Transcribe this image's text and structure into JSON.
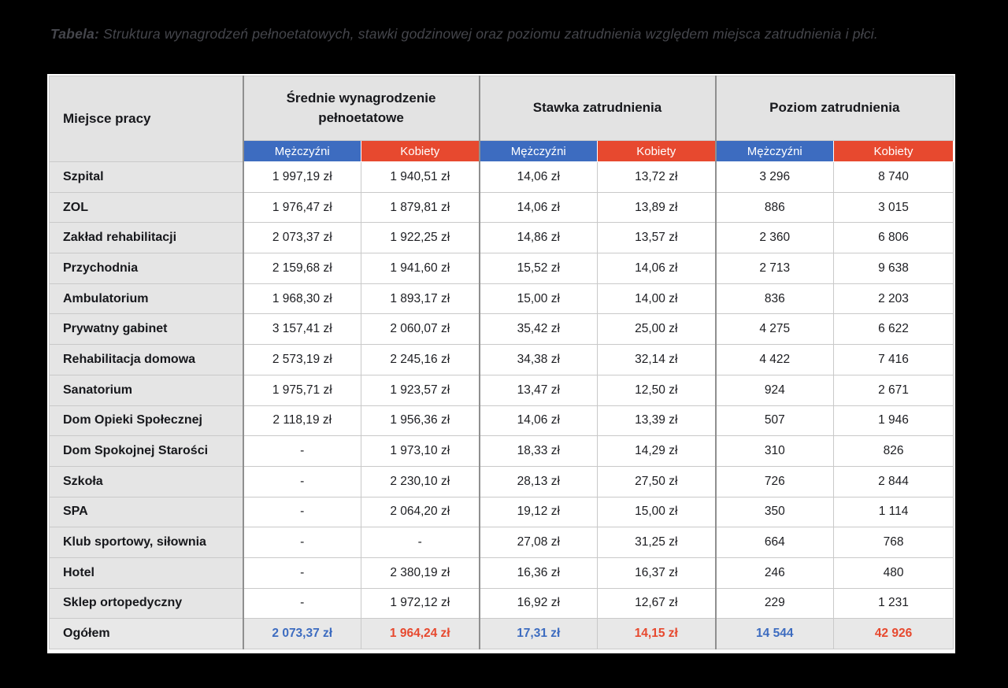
{
  "colors": {
    "male_accent": "#3d6cc0",
    "female_accent": "#e7492f",
    "header_gray": "#e3e3e3",
    "label_gray": "#e5e5e5",
    "total_gray": "#e8e8e8",
    "page_background": "#000000"
  },
  "chart_data": {
    "type": "table",
    "caption_prefix": "Tabela:",
    "caption_text": "Struktura wynagrodzeń pełnoetatowych, stawki godzinowej oraz poziomu zatrudnienia względem miejsca zatrudnienia i płci.",
    "corner_header": "Miejsce pracy",
    "column_groups": [
      "Średnie wynagrodzenie pełnoetatowe",
      "Stawka zatrudnienia",
      "Poziom zatrudnienia"
    ],
    "subcolumns": [
      "Mężczyźni",
      "Kobiety",
      "Mężczyźni",
      "Kobiety",
      "Mężczyźni",
      "Kobiety"
    ],
    "rows": [
      {
        "label": "Szpital",
        "values": [
          "1 997,19 zł",
          "1 940,51 zł",
          "14,06 zł",
          "13,72 zł",
          "3 296",
          "8 740"
        ]
      },
      {
        "label": "ZOL",
        "values": [
          "1 976,47 zł",
          "1 879,81 zł",
          "14,06 zł",
          "13,89 zł",
          "886",
          "3 015"
        ]
      },
      {
        "label": "Zakład rehabilitacji",
        "values": [
          "2 073,37 zł",
          "1 922,25 zł",
          "14,86 zł",
          "13,57 zł",
          "2 360",
          "6 806"
        ]
      },
      {
        "label": "Przychodnia",
        "values": [
          "2 159,68 zł",
          "1 941,60 zł",
          "15,52 zł",
          "14,06 zł",
          "2 713",
          "9 638"
        ]
      },
      {
        "label": "Ambulatorium",
        "values": [
          "1 968,30 zł",
          "1 893,17 zł",
          "15,00 zł",
          "14,00 zł",
          "836",
          "2 203"
        ]
      },
      {
        "label": "Prywatny gabinet",
        "values": [
          "3 157,41 zł",
          "2 060,07 zł",
          "35,42 zł",
          "25,00 zł",
          "4 275",
          "6 622"
        ]
      },
      {
        "label": "Rehabilitacja domowa",
        "values": [
          "2 573,19 zł",
          "2 245,16 zł",
          "34,38 zł",
          "32,14 zł",
          "4 422",
          "7 416"
        ]
      },
      {
        "label": "Sanatorium",
        "values": [
          "1 975,71 zł",
          "1 923,57 zł",
          "13,47 zł",
          "12,50 zł",
          "924",
          "2 671"
        ]
      },
      {
        "label": "Dom Opieki Społecznej",
        "values": [
          "2 118,19 zł",
          "1 956,36 zł",
          "14,06 zł",
          "13,39 zł",
          "507",
          "1 946"
        ]
      },
      {
        "label": "Dom Spokojnej Starości",
        "values": [
          "-",
          "1 973,10 zł",
          "18,33 zł",
          "14,29 zł",
          "310",
          "826"
        ]
      },
      {
        "label": "Szkoła",
        "values": [
          "-",
          "2 230,10 zł",
          "28,13 zł",
          "27,50 zł",
          "726",
          "2 844"
        ]
      },
      {
        "label": "SPA",
        "values": [
          "-",
          "2 064,20 zł",
          "19,12 zł",
          "15,00 zł",
          "350",
          "1 114"
        ]
      },
      {
        "label": "Klub sportowy, siłownia",
        "values": [
          "-",
          "-",
          "27,08 zł",
          "31,25 zł",
          "664",
          "768"
        ]
      },
      {
        "label": "Hotel",
        "values": [
          "-",
          "2 380,19 zł",
          "16,36 zł",
          "16,37 zł",
          "246",
          "480"
        ]
      },
      {
        "label": "Sklep ortopedyczny",
        "values": [
          "-",
          "1 972,12 zł",
          "16,92 zł",
          "12,67 zł",
          "229",
          "1 231"
        ]
      }
    ],
    "total": {
      "label": "Ogółem",
      "values": [
        "2 073,37 zł",
        "1 964,24 zł",
        "17,31 zł",
        "14,15 zł",
        "14 544",
        "42 926"
      ]
    }
  }
}
